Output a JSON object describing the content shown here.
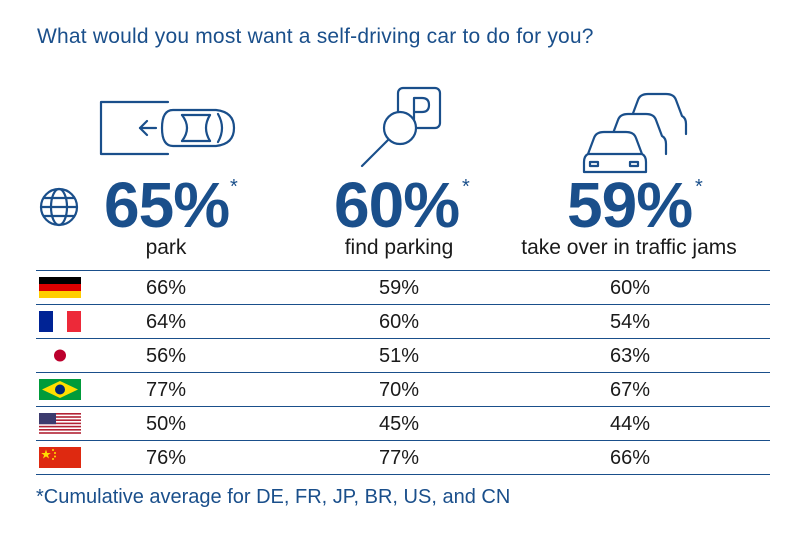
{
  "title": "What would you most want a self-driving car to do for you?",
  "chart_data": {
    "type": "table",
    "title": "What would you most want a self-driving car to do for you?",
    "columns": [
      {
        "label": "park",
        "average": "65%",
        "icon": "parking-car-icon"
      },
      {
        "label": "find parking",
        "average": "60%",
        "icon": "find-parking-icon"
      },
      {
        "label": "take over in traffic jams",
        "average": "59%",
        "icon": "traffic-jam-icon"
      }
    ],
    "average_icon": "globe-icon",
    "asterisk": "*",
    "rows": [
      {
        "country": "DE",
        "flag": "germany-flag-icon",
        "values": [
          "66%",
          "59%",
          "60%"
        ]
      },
      {
        "country": "FR",
        "flag": "france-flag-icon",
        "values": [
          "64%",
          "60%",
          "54%"
        ]
      },
      {
        "country": "JP",
        "flag": "japan-flag-icon",
        "values": [
          "56%",
          "51%",
          "63%"
        ]
      },
      {
        "country": "BR",
        "flag": "brazil-flag-icon",
        "values": [
          "77%",
          "70%",
          "67%"
        ]
      },
      {
        "country": "US",
        "flag": "usa-flag-icon",
        "values": [
          "50%",
          "45%",
          "44%"
        ]
      },
      {
        "country": "CN",
        "flag": "china-flag-icon",
        "values": [
          "76%",
          "77%",
          "66%"
        ]
      }
    ],
    "footnote": "*Cumulative average for DE, FR, JP, BR, US, and CN"
  },
  "colors": {
    "accent": "#1a4f8b",
    "text": "#1a1a1a"
  }
}
